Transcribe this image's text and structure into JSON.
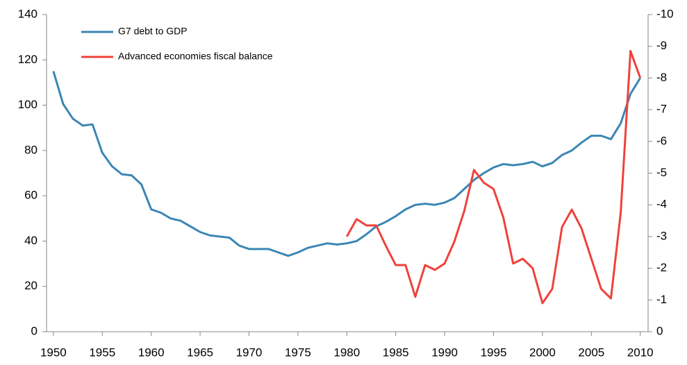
{
  "chart_data": {
    "type": "line",
    "x": [
      1950,
      1951,
      1952,
      1953,
      1954,
      1955,
      1956,
      1957,
      1958,
      1959,
      1960,
      1961,
      1962,
      1963,
      1964,
      1965,
      1966,
      1967,
      1968,
      1969,
      1970,
      1971,
      1972,
      1973,
      1974,
      1975,
      1976,
      1977,
      1978,
      1979,
      1980,
      1981,
      1982,
      1983,
      1984,
      1985,
      1986,
      1987,
      1988,
      1989,
      1990,
      1991,
      1992,
      1993,
      1994,
      1995,
      1996,
      1997,
      1998,
      1999,
      2000,
      2001,
      2002,
      2003,
      2004,
      2005,
      2006,
      2007,
      2008,
      2009,
      2010
    ],
    "series": [
      {
        "name": "G7 debt to GDP",
        "color": "#3a86b4",
        "values": [
          115,
          100.5,
          94,
          91,
          91.5,
          79,
          73,
          69.5,
          69,
          65,
          54,
          52.5,
          50,
          49,
          46.5,
          44,
          42.5,
          42,
          41.5,
          38,
          36.5,
          36.5,
          36.5,
          35,
          33.5,
          35,
          37,
          38,
          39,
          38.5,
          39,
          40,
          43,
          46.5,
          48.5,
          51,
          54,
          56,
          56.5,
          56,
          57,
          59,
          63,
          67,
          70,
          72.5,
          74,
          73.5,
          74,
          75,
          73,
          74.5,
          78,
          80,
          83.5,
          86.5,
          86.5,
          85,
          92,
          105,
          112
        ]
      },
      {
        "name": "Advanced economies fiscal balance",
        "color": "#f0413c",
        "axis": "y2",
        "values": [
          null,
          null,
          null,
          null,
          null,
          null,
          null,
          null,
          null,
          null,
          null,
          null,
          null,
          null,
          null,
          null,
          null,
          null,
          null,
          null,
          null,
          null,
          null,
          null,
          null,
          null,
          null,
          null,
          null,
          null,
          -3.0,
          -3.55,
          -3.35,
          -3.35,
          -2.7,
          -2.1,
          -2.1,
          -1.1,
          -2.1,
          -1.95,
          -2.15,
          -2.85,
          -3.8,
          -5.1,
          -4.7,
          -4.5,
          -3.6,
          -2.15,
          -2.3,
          -2.0,
          -0.9,
          -1.35,
          -3.3,
          -3.85,
          -3.25,
          -2.3,
          -1.35,
          -1.05,
          -3.75,
          -8.85,
          -8.0
        ]
      }
    ],
    "xlim": [
      1949.3,
      2010.8
    ],
    "xticks": [
      1950,
      1955,
      1960,
      1965,
      1970,
      1975,
      1980,
      1985,
      1990,
      1995,
      2000,
      2005,
      2010
    ],
    "ylim": [
      0,
      140
    ],
    "yticks": [
      0,
      20,
      40,
      60,
      80,
      100,
      120,
      140
    ],
    "y2lim": [
      0,
      -10
    ],
    "y2ticks": [
      0,
      -1,
      -2,
      -3,
      -4,
      -5,
      -6,
      -7,
      -8,
      -9,
      -10
    ],
    "legend": "upper left"
  }
}
